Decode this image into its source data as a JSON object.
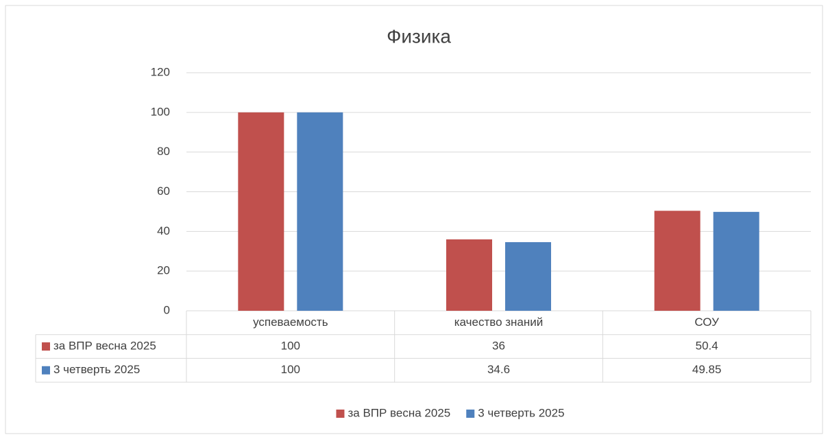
{
  "chart_data": {
    "type": "bar",
    "title": "Физика",
    "categories": [
      "успеваемость",
      "качество знаний",
      "СОУ"
    ],
    "series": [
      {
        "name": "за ВПР весна 2025",
        "color": "#c0504d",
        "values": [
          100,
          36,
          50.4
        ]
      },
      {
        "name": "3 четверть 2025",
        "color": "#4f81bd",
        "values": [
          100,
          34.6,
          49.85
        ]
      }
    ],
    "ylim": [
      0,
      120
    ],
    "yticks": [
      0,
      20,
      40,
      60,
      80,
      100,
      120
    ],
    "grid": true,
    "legend": "bottom"
  }
}
